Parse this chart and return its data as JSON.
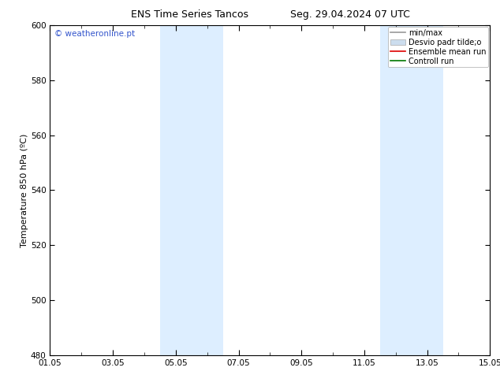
{
  "title_left": "ENS Time Series Tancos",
  "title_right": "Seg. 29.04.2024 07 UTC",
  "ylabel": "Temperature 850 hPa (ºC)",
  "ylim": [
    480,
    600
  ],
  "yticks": [
    480,
    500,
    520,
    540,
    560,
    580,
    600
  ],
  "xlim": [
    0,
    14
  ],
  "xtick_labels": [
    "01.05",
    "03.05",
    "05.05",
    "07.05",
    "09.05",
    "11.05",
    "13.05",
    "15.05"
  ],
  "xtick_positions_days": [
    0,
    2,
    4,
    6,
    8,
    10,
    12,
    14
  ],
  "shaded_bands": [
    {
      "xstart_days": 3.5,
      "xend_days": 5.5
    },
    {
      "xstart_days": 10.5,
      "xend_days": 12.5
    }
  ],
  "shaded_color": "#ddeeff",
  "legend_items": [
    {
      "label": "min/max",
      "color": "#999999",
      "type": "line",
      "linewidth": 1.2
    },
    {
      "label": "Desvio padr tilde;o",
      "color": "#ccddee",
      "type": "patch"
    },
    {
      "label": "Ensemble mean run",
      "color": "#dd0000",
      "type": "line",
      "linewidth": 1.2
    },
    {
      "label": "Controll run",
      "color": "#007700",
      "type": "line",
      "linewidth": 1.2
    }
  ],
  "watermark": "© weatheronline.pt",
  "watermark_color": "#3355cc",
  "bg_color": "#ffffff",
  "plot_bg_color": "#ffffff",
  "title_fontsize": 9,
  "tick_fontsize": 7.5,
  "ylabel_fontsize": 8,
  "legend_fontsize": 7
}
